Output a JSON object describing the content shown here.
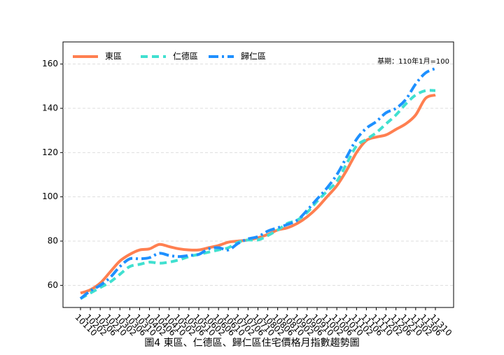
{
  "chart_data": {
    "type": "line",
    "title": "圖4 東區、仁德區、歸仁區住宅價格月指數趨勢圖",
    "annotation": "基期：110年1月=100",
    "categories": [
      "10110",
      "10202",
      "10206",
      "10210",
      "10302",
      "10306",
      "10310",
      "10402",
      "10406",
      "10410",
      "10502",
      "10506",
      "10510",
      "10602",
      "10606",
      "10610",
      "10702",
      "10706",
      "10710",
      "10802",
      "10806",
      "10810",
      "10902",
      "10906",
      "10910",
      "11002",
      "11006",
      "11010",
      "11102",
      "11106",
      "11110",
      "11202",
      "11206",
      "11210",
      "11302",
      "11306",
      "11310"
    ],
    "series": [
      {
        "name": "東區",
        "color": "#ff7f50",
        "dash": "solid",
        "values": [
          56.5,
          58,
          61,
          66,
          71,
          74,
          76,
          76.5,
          78.5,
          77.5,
          76.5,
          76,
          76,
          77,
          78,
          79.5,
          80,
          80.5,
          81.5,
          83,
          85,
          86,
          88,
          91,
          95,
          100,
          105,
          112,
          120,
          125.5,
          127,
          128,
          130.5,
          133,
          137,
          144.5,
          146
        ]
      },
      {
        "name": "仁德區",
        "color": "#40e0d0",
        "dash": "dashed",
        "values": [
          54,
          56.5,
          59,
          61.5,
          65,
          68.5,
          69.5,
          70.5,
          70,
          70.5,
          71.5,
          73,
          74,
          75,
          76,
          77,
          79.5,
          80.5,
          80.5,
          82.5,
          85,
          88,
          89.5,
          93,
          98,
          102.5,
          107,
          115,
          123,
          126,
          129,
          133,
          137,
          142,
          146,
          148,
          148
        ]
      },
      {
        "name": "歸仁區",
        "color": "#1e90ff",
        "dash": "dashdot",
        "values": [
          54,
          57.5,
          60,
          63.5,
          68.5,
          72,
          72,
          72.5,
          74.5,
          73.5,
          73,
          73.5,
          74,
          76.5,
          77,
          76,
          79,
          81,
          82,
          84.5,
          86,
          87.5,
          89.5,
          94,
          99,
          104,
          110,
          118,
          126,
          131,
          134,
          138,
          140,
          144,
          151,
          156,
          158
        ]
      }
    ],
    "ylim": [
      50,
      170
    ],
    "yticks": [
      60,
      80,
      100,
      120,
      140,
      160
    ],
    "grid": true,
    "legend": "upper left"
  }
}
